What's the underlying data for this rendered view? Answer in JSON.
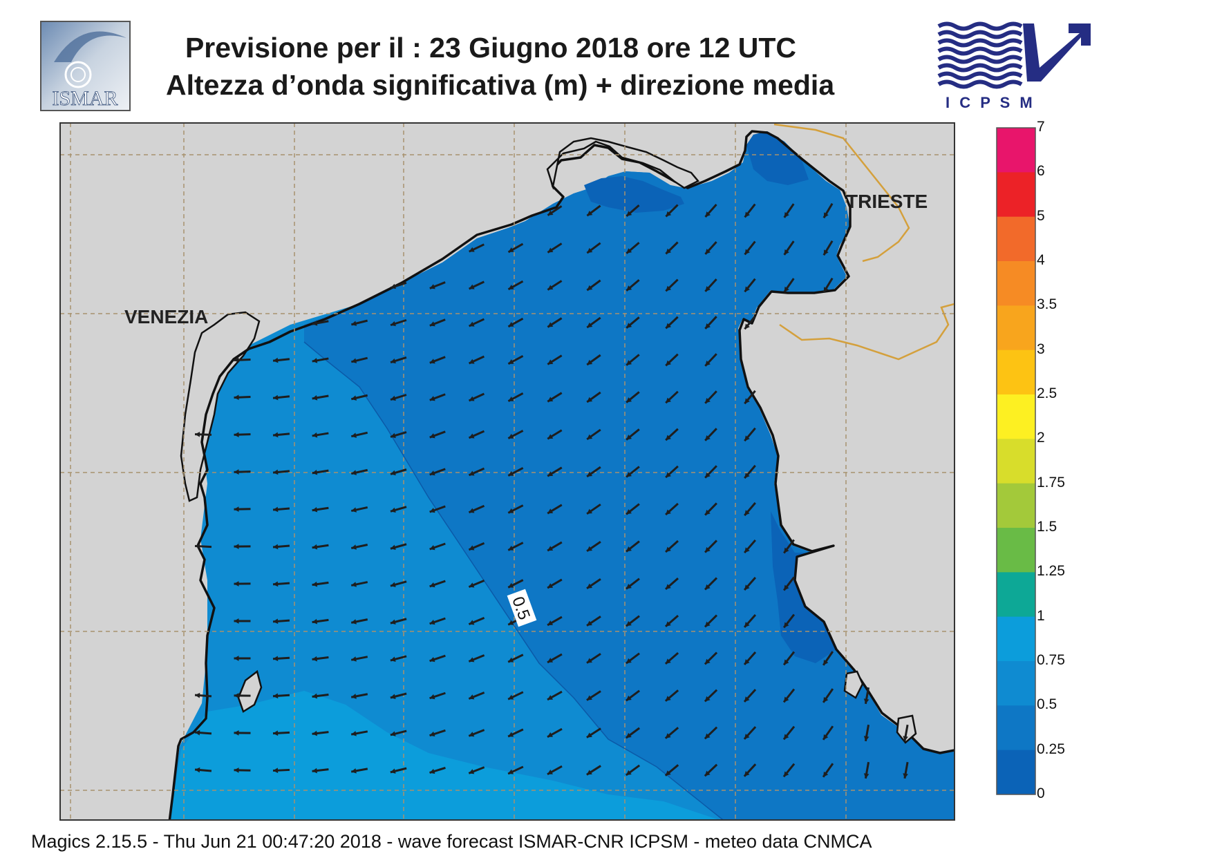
{
  "header": {
    "title_line1": "Previsione per il  :  23   Giugno  2018   ore 12 UTC",
    "title_line2": "Altezza d’onda significativa (m) + direzione media"
  },
  "logos": {
    "left_text": "ISMAR",
    "right_text": "I C P S M"
  },
  "map": {
    "place_labels": [
      "VENEZIA",
      "TRIESTE"
    ],
    "contour_label": "0.5",
    "land_color": "#d3d3d3",
    "coast_color": "#111111",
    "border_color": "#d4a03c",
    "grid_color": "#a8926e",
    "arrow_color": "#1e1e1e",
    "wave_direction": "south-west"
  },
  "legend": {
    "title": "",
    "labels": [
      "7",
      "6",
      "5",
      "4",
      "3.5",
      "3",
      "2.5",
      "2",
      "1.75",
      "1.5",
      "1.25",
      "1",
      "0.75",
      "0.5",
      "0.25",
      "0"
    ],
    "colors": [
      "#e8156b",
      "#ec2227",
      "#f26a2a",
      "#f68b24",
      "#f8a51d",
      "#fdc313",
      "#fdf022",
      "#d8dd2b",
      "#a3c93a",
      "#69bb46",
      "#0da896",
      "#0c9ddb",
      "#0f8bd1",
      "#0e77c5",
      "#0b63b7"
    ]
  },
  "footer": {
    "text": "Magics 2.15.5 - Thu Jun 21 00:47:20 2018 - wave forecast  ISMAR-CNR  ICPSM - meteo data   CNMCA"
  }
}
